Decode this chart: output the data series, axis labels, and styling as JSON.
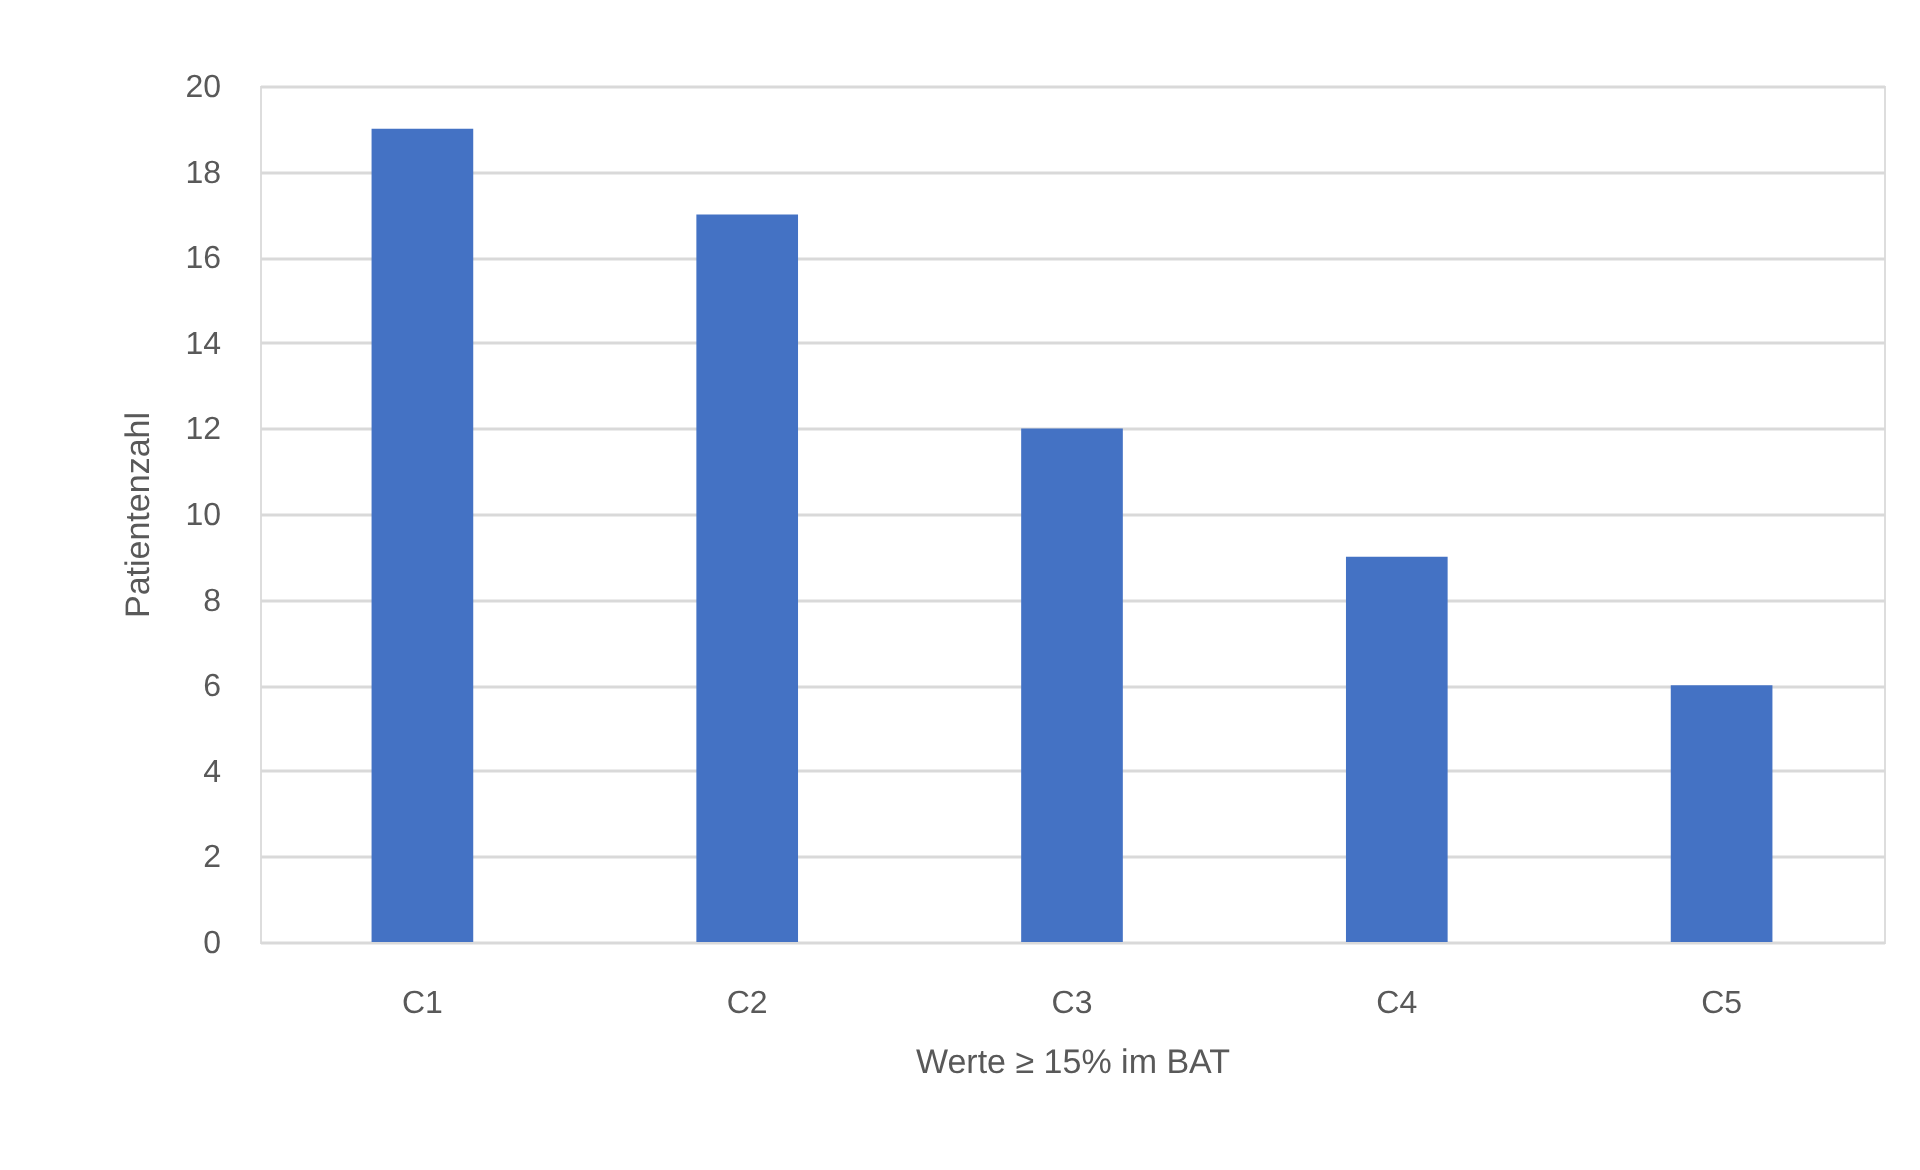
{
  "chart_data": {
    "type": "bar",
    "xlabel": "Werte ≥ 15% im BAT",
    "ylabel": "Patientenzahl",
    "categories": [
      "C1",
      "C2",
      "C3",
      "C4",
      "C5"
    ],
    "values": [
      19,
      17,
      12,
      9,
      6
    ],
    "color": "#4472c4",
    "ylim": [
      0,
      20
    ],
    "yticks": [
      0,
      2,
      4,
      6,
      8,
      10,
      12,
      14,
      16,
      18,
      20
    ],
    "grid": "y"
  }
}
